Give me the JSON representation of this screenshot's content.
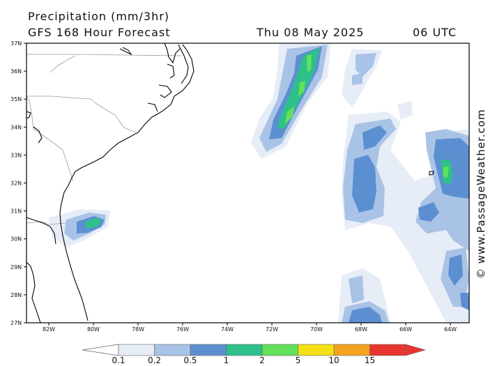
{
  "title": {
    "line1": "Precipitation (mm/3hr)",
    "product": "GFS 168 Hour Forecast",
    "date": "Thu 08 May 2025",
    "utc": "06 UTC"
  },
  "credit": "© www.PassageWeather.com",
  "axes": {
    "lat_labels": [
      "37N",
      "36N",
      "35N",
      "34N",
      "33N",
      "32N",
      "31N",
      "30N",
      "29N",
      "28N",
      "27N"
    ],
    "lon_labels": [
      "82W",
      "80W",
      "78W",
      "76W",
      "74W",
      "72W",
      "70W",
      "68W",
      "66W",
      "64W"
    ]
  },
  "colorbar": {
    "ticks": [
      "0.1",
      "0.2",
      "0.5",
      "1",
      "2",
      "5",
      "10",
      "15"
    ],
    "colors": [
      "#e6edf7",
      "#a9c3e6",
      "#5c8fd2",
      "#2fbf8a",
      "#63e05c",
      "#f4e014",
      "#f5a21f",
      "#e8362e"
    ],
    "low_end_color": "#ffffff",
    "high_end_color": "#e8362e"
  },
  "map": {
    "region": "US Southeast coast / western North Atlantic",
    "land_outline_color": "#000000",
    "state_border_color": "#9a9a9a"
  }
}
